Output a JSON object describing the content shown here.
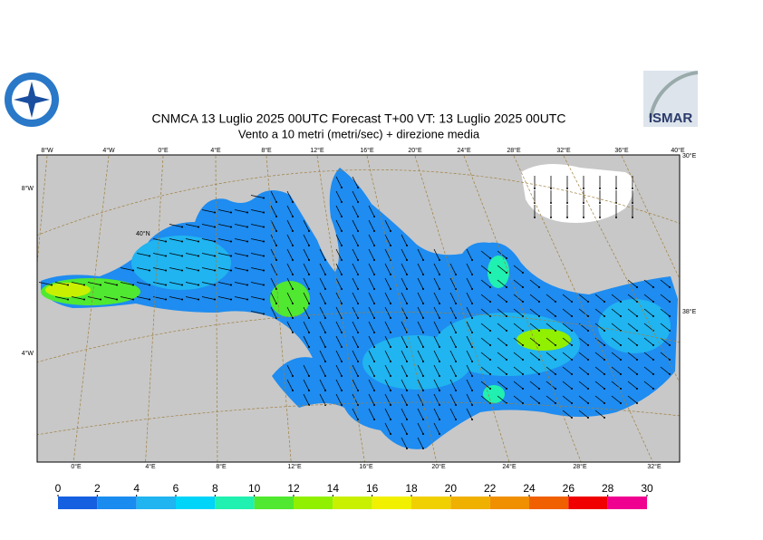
{
  "title": "CNMCA 13  Luglio   2025 00UTC Forecast T+00 VT: 13  Luglio   2025 00UTC",
  "subtitle": "Vento a 10 metri (metri/sec) + direzione media",
  "logo_text": "ISMAR",
  "top_lon_labels": [
    "8°W",
    "4°W",
    "0°E",
    "4°E",
    "8°E",
    "12°E",
    "16°E",
    "20°E",
    "24°E",
    "28°E",
    "32°E",
    "36°E",
    "40°E"
  ],
  "bottom_lon_labels": [
    "0°E",
    "4°E",
    "8°E",
    "12°E",
    "16°E",
    "20°E",
    "24°E",
    "28°E",
    "32°E"
  ],
  "left_labels": [
    "8°W",
    "4°W"
  ],
  "right_labels": [
    "30°E",
    "38°E"
  ],
  "inner_label": "40°N",
  "colorbar": {
    "ticks": [
      0,
      2,
      4,
      6,
      8,
      10,
      12,
      14,
      16,
      18,
      20,
      22,
      24,
      26,
      28,
      30
    ],
    "colors": [
      "#1560e0",
      "#1a8cf0",
      "#20b4f0",
      "#00d4f8",
      "#20f0b0",
      "#50e830",
      "#90f000",
      "#c8f000",
      "#f0f000",
      "#f0d000",
      "#f0b000",
      "#f09000",
      "#f06000",
      "#f00000",
      "#f00090"
    ]
  }
}
